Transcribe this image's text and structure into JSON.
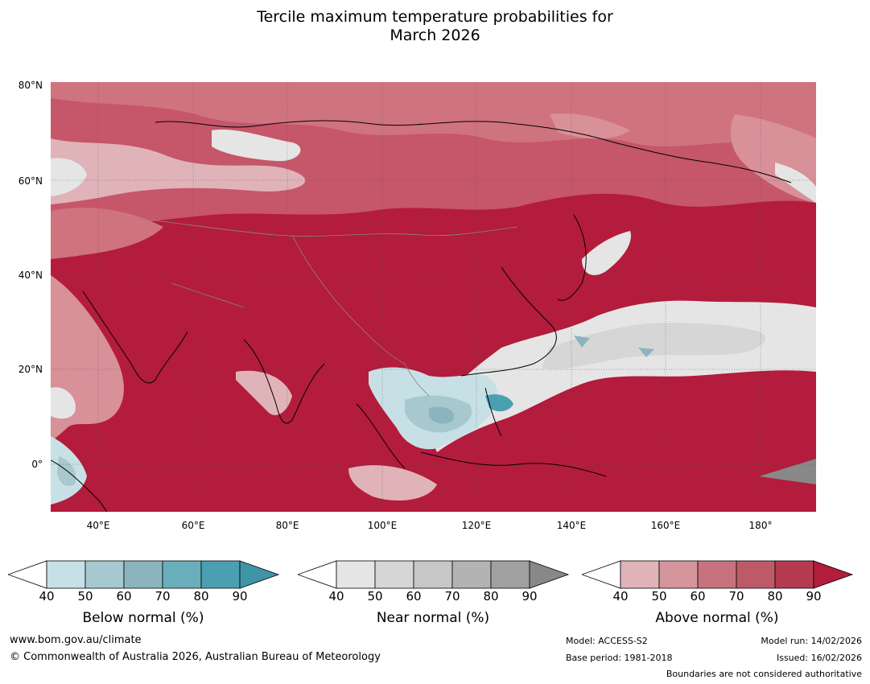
{
  "title_line1": "Tercile maximum temperature probabilities for",
  "title_line2": "March 2026",
  "map": {
    "lat_labels": [
      "80°N",
      "60°N",
      "40°N",
      "20°N",
      "0°"
    ],
    "lon_labels": [
      "40°E",
      "60°E",
      "80°E",
      "100°E",
      "120°E",
      "140°E",
      "160°E",
      "180°"
    ],
    "extent": {
      "lon_min": 30,
      "lon_max": 191,
      "lat_min": -10,
      "lat_max": 81
    },
    "colors": {
      "above_90": "#b31c3c",
      "above_80": "#bd3951",
      "above_70": "#c6566a",
      "above_60": "#cf737f",
      "above_50": "#d89099",
      "above_40": "#e0b3b9",
      "near_40": "#e5e5e5",
      "near_50": "#d6d6d6",
      "near_60": "#c7c7c7",
      "below_40": "#c7e0e6",
      "below_50": "#a7c8cf",
      "below_60": "#8cb4bf",
      "below_80": "#4aa0b0",
      "near_90": "#888888"
    }
  },
  "legends": [
    {
      "label": "Below normal (%)",
      "ticks": [
        "40",
        "50",
        "60",
        "70",
        "80",
        "90"
      ],
      "colors": [
        "#c7e0e6",
        "#a7c8cf",
        "#8cb4bf",
        "#6aaebb",
        "#4aa0b0",
        "#3f95a6"
      ]
    },
    {
      "label": "Near normal (%)",
      "ticks": [
        "40",
        "50",
        "60",
        "70",
        "80",
        "90"
      ],
      "colors": [
        "#e5e5e5",
        "#d6d6d6",
        "#c7c7c7",
        "#b3b3b3",
        "#a0a0a0",
        "#888888"
      ]
    },
    {
      "label": "Above normal (%)",
      "ticks": [
        "40",
        "50",
        "60",
        "70",
        "80",
        "90"
      ],
      "colors": [
        "#e0b3b9",
        "#d5959d",
        "#c7737f",
        "#be5a68",
        "#b63a4f",
        "#b31c3c"
      ]
    }
  ],
  "footer": {
    "website": "www.bom.gov.au/climate",
    "copyright": "© Commonwealth of Australia 2026, Australian Bureau of Meteorology",
    "model": "Model: ACCESS-S2",
    "base_period": "Base period: 1981-2018",
    "model_run": "Model run: 14/02/2026",
    "issued": "Issued: 16/02/2026",
    "disclaimer": "Boundaries are not considered authoritative"
  }
}
